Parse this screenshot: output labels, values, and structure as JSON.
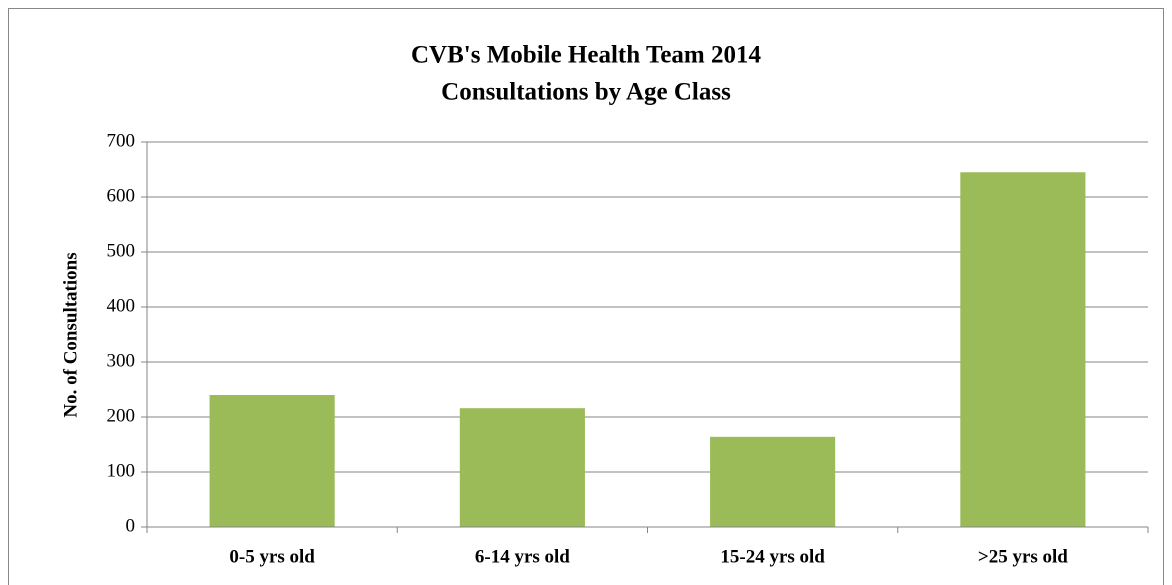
{
  "chart_data": {
    "type": "bar",
    "title": [
      "CVB's Mobile Health Team 2014",
      "Consultations by Age Class"
    ],
    "y_label": "No. of Consultations",
    "categories": [
      "0-5 yrs old",
      "6-14 yrs old",
      "15-24 yrs old",
      ">25 yrs old"
    ],
    "values": [
      240,
      216,
      164,
      645
    ],
    "color": "#9bbb59",
    "ylim": [
      0,
      700
    ],
    "yticks": [
      0,
      100,
      200,
      300,
      400,
      500,
      600,
      700
    ],
    "grid": true
  }
}
